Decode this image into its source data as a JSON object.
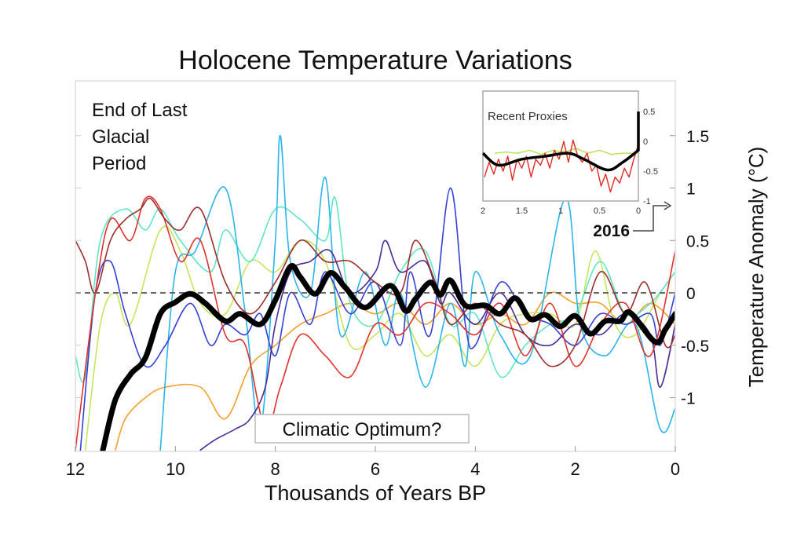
{
  "chart_data": {
    "type": "line",
    "title": "Holocene Temperature Variations",
    "xlabel": "Thousands of Years BP",
    "ylabel": "Temperature Anomaly (°C)",
    "xlim": [
      12,
      0
    ],
    "ylim": [
      -1.5,
      2.0
    ],
    "xticks": [
      "12",
      "10",
      "8",
      "6",
      "4",
      "2",
      "0"
    ],
    "xtick_values": [
      12,
      10,
      8,
      6,
      4,
      2,
      0
    ],
    "yticks": [
      "1.5",
      "1",
      "0.5",
      "0",
      "-0.5",
      "-1"
    ],
    "ytick_values": [
      1.5,
      1,
      0.5,
      0,
      -0.5,
      -1
    ],
    "grid": false,
    "reference_line": 0,
    "annotations": {
      "glacial": [
        "End of Last",
        "Glacial",
        "Period"
      ],
      "optimum": "Climatic Optimum?",
      "year": "2016"
    },
    "series": [
      {
        "name": "proxy-orange",
        "color": "#f5a02a",
        "x": [
          11.2,
          11.0,
          10.6,
          10.2,
          9.5,
          9.0,
          8.5,
          8.0,
          7.5,
          7.0,
          6.5,
          6.0,
          5.5,
          5.0,
          4.5,
          4.0,
          3.5,
          3.0,
          2.5,
          2.0,
          1.5,
          1.0,
          0.5,
          0.0
        ],
        "y": [
          -1.5,
          -1.2,
          -1.0,
          -0.9,
          -0.9,
          -1.2,
          -0.7,
          -0.5,
          -0.3,
          -0.2,
          -0.1,
          -0.2,
          -0.1,
          -0.3,
          -0.1,
          -0.3,
          -0.2,
          -0.3,
          0.0,
          -0.1,
          -0.1,
          -0.3,
          -0.1,
          -0.3
        ]
      },
      {
        "name": "proxy-yellowgreen",
        "color": "#c4e65a",
        "x": [
          11.8,
          11.5,
          11.2,
          10.9,
          10.3,
          9.9,
          9.5,
          9.0,
          8.5,
          8.0,
          7.5,
          7.0,
          6.5,
          6.0,
          5.5,
          5.0,
          4.5,
          4.0,
          3.5,
          3.0,
          2.5,
          2.0,
          1.6,
          1.2,
          0.8,
          0.3,
          0.0
        ],
        "y": [
          -1.5,
          -0.3,
          0.0,
          -0.3,
          0.6,
          0.4,
          -0.1,
          -0.2,
          0.3,
          0.2,
          0.5,
          0.3,
          -0.5,
          -0.4,
          -0.2,
          -0.6,
          -0.4,
          -0.7,
          -0.3,
          -0.2,
          -0.2,
          -0.3,
          0.4,
          -0.3,
          -0.4,
          0.0,
          0.2
        ]
      },
      {
        "name": "proxy-aqua",
        "color": "#5ee6c4",
        "x": [
          12,
          11.8,
          11.5,
          11.0,
          10.6,
          10.3,
          9.9,
          9.3,
          9.0,
          8.5,
          8.0,
          7.5,
          7.0,
          6.8,
          6.5,
          6.0,
          5.5,
          5.0,
          4.5,
          4.0,
          3.5,
          3.0,
          2.5,
          2.0,
          1.5,
          1.0,
          0.5,
          0.0
        ],
        "y": [
          -0.6,
          -0.8,
          0.5,
          0.8,
          0.6,
          0.8,
          0.5,
          0.2,
          0.6,
          0.3,
          0.8,
          0.7,
          0.5,
          0.9,
          -0.1,
          -0.3,
          0.2,
          0.4,
          -0.3,
          -0.2,
          -0.8,
          -0.5,
          -0.3,
          -0.2,
          0.3,
          -0.2,
          -0.1,
          0.2
        ]
      },
      {
        "name": "proxy-lightblue",
        "color": "#2ab4ec",
        "x": [
          10.3,
          10.0,
          9.6,
          9.0,
          8.6,
          8.3,
          8.0,
          7.9,
          7.7,
          7.3,
          7.0,
          6.7,
          6.2,
          5.8,
          5.5,
          5.0,
          4.5,
          4.2,
          4.0,
          3.5,
          2.9,
          2.2,
          1.9,
          1.4,
          0.8,
          0.3,
          0.0
        ],
        "y": [
          -1.5,
          0.2,
          0.4,
          1.0,
          -0.2,
          -1.3,
          0.5,
          1.5,
          0.3,
          0.0,
          1.1,
          -0.4,
          0.2,
          -0.5,
          0.0,
          -0.9,
          -0.1,
          -0.7,
          0.2,
          -0.4,
          -0.6,
          0.9,
          -0.3,
          -0.6,
          -0.3,
          -1.3,
          -1.1
        ]
      },
      {
        "name": "proxy-blue",
        "color": "#3340d6",
        "x": [
          11.9,
          11.6,
          11.3,
          11.0,
          10.6,
          10.2,
          9.7,
          9.3,
          9.0,
          8.6,
          8.3,
          8.0,
          7.7,
          7.3,
          7.0,
          6.5,
          6.0,
          5.5,
          5.3,
          4.9,
          4.5,
          4.2,
          4.0,
          3.5,
          3.0,
          2.5,
          2.0,
          1.5,
          1.0,
          0.5,
          0.3,
          0.0
        ],
        "y": [
          -1.5,
          0.0,
          0.3,
          -0.2,
          -0.7,
          -0.5,
          -0.1,
          -0.5,
          -0.3,
          -0.4,
          -0.2,
          -0.6,
          0.0,
          -0.3,
          0.2,
          -0.2,
          0.1,
          -0.5,
          0.2,
          -0.4,
          1.0,
          -0.3,
          -0.5,
          0.1,
          -0.2,
          -0.3,
          -0.5,
          -0.2,
          -0.3,
          -0.2,
          -0.5,
          0.0
        ]
      },
      {
        "name": "proxy-purple",
        "color": "#4a2a96",
        "x": [
          9.5,
          9.2,
          8.8,
          8.5,
          8.2,
          8.0,
          7.7,
          7.3,
          6.9,
          6.5,
          6.0,
          5.8,
          5.5,
          5.0,
          4.7,
          4.5,
          4.0,
          3.5,
          3.0,
          2.5,
          2.0,
          1.5,
          1.0,
          0.5,
          0.3,
          0.0
        ],
        "y": [
          -1.5,
          -1.4,
          -1.3,
          -1.2,
          -0.9,
          -0.3,
          0.2,
          0.3,
          0.4,
          0.0,
          0.2,
          0.5,
          0.2,
          0.3,
          -0.1,
          0.0,
          -0.3,
          0.0,
          -0.4,
          -0.5,
          -0.3,
          -0.4,
          -0.2,
          -0.4,
          -0.9,
          -0.3
        ]
      },
      {
        "name": "proxy-red",
        "color": "#e0322a",
        "x": [
          12,
          11.6,
          11.3,
          10.9,
          10.6,
          10.3,
          9.9,
          9.5,
          9.0,
          8.6,
          8.2,
          7.9,
          7.5,
          7.0,
          6.5,
          6.0,
          5.5,
          5.0,
          4.5,
          4.0,
          3.5,
          3.0,
          2.5,
          2.0,
          1.5,
          1.0,
          0.5,
          0.0
        ],
        "y": [
          -1.5,
          0.0,
          0.7,
          0.5,
          0.9,
          0.8,
          0.3,
          0.5,
          -0.4,
          -0.5,
          -1.3,
          -0.9,
          -0.4,
          -0.6,
          -0.8,
          -0.3,
          -0.4,
          -0.1,
          -0.2,
          -0.4,
          -0.1,
          -0.6,
          -0.1,
          -0.7,
          -0.3,
          -0.1,
          -0.6,
          0.4
        ]
      },
      {
        "name": "proxy-darkred",
        "color": "#9c2e2e",
        "x": [
          12,
          11.8,
          11.6,
          11.3,
          11.0,
          10.7,
          10.5,
          10.2,
          9.9,
          9.5,
          9.0,
          8.5,
          8.0,
          7.5,
          7.0,
          6.5,
          6.0,
          5.5,
          5.2,
          4.8,
          4.5,
          4.0,
          3.5,
          3.0,
          2.5,
          2.0,
          1.5,
          1.0,
          0.6,
          0.2,
          0.0
        ],
        "y": [
          0.5,
          0.3,
          0.0,
          0.5,
          0.7,
          0.8,
          0.9,
          0.7,
          0.6,
          0.8,
          0.1,
          -0.2,
          0.1,
          0.5,
          0.3,
          0.3,
          0.1,
          0.0,
          0.5,
          0.1,
          -0.3,
          -0.1,
          -0.3,
          -0.4,
          -0.7,
          -0.5,
          0.2,
          -0.2,
          0.1,
          -0.5,
          -0.4
        ]
      },
      {
        "name": "mean",
        "color": "#000000",
        "x": [
          11.45,
          11.2,
          10.9,
          10.6,
          10.3,
          10.0,
          9.7,
          9.4,
          9.0,
          8.7,
          8.3,
          8.0,
          7.7,
          7.5,
          7.2,
          6.9,
          6.6,
          6.2,
          5.7,
          5.4,
          5.2,
          4.9,
          4.7,
          4.5,
          4.2,
          3.8,
          3.5,
          3.2,
          2.9,
          2.6,
          2.3,
          2.0,
          1.7,
          1.4,
          1.1,
          0.9,
          0.4,
          0.2,
          0.0
        ],
        "y": [
          -1.5,
          -1.02,
          -0.78,
          -0.62,
          -0.2,
          -0.09,
          -0.01,
          -0.1,
          -0.27,
          -0.2,
          -0.3,
          -0.07,
          0.25,
          0.15,
          -0.01,
          0.19,
          0.05,
          -0.14,
          0.07,
          -0.17,
          -0.06,
          0.1,
          -0.02,
          0.12,
          -0.12,
          -0.12,
          -0.2,
          -0.05,
          -0.25,
          -0.21,
          -0.32,
          -0.22,
          -0.39,
          -0.27,
          -0.27,
          -0.19,
          -0.47,
          -0.35,
          -0.2
        ]
      }
    ],
    "inset": {
      "title": "Recent Proxies",
      "xlim": [
        2,
        0
      ],
      "ylim": [
        -1,
        0.85
      ],
      "xticks": [
        "2",
        "1.5",
        "1",
        "0.5",
        "0"
      ],
      "xtick_values": [
        2,
        1.5,
        1,
        0.5,
        0
      ],
      "yticks": [
        "0.5",
        "0",
        "-0.5",
        "-1"
      ],
      "ytick_values": [
        0.5,
        0,
        -0.5,
        -1
      ],
      "series": [
        {
          "name": "recent-green",
          "color": "#b8e04a",
          "x": [
            1.85,
            1.7,
            1.55,
            1.4,
            1.25,
            1.1,
            0.95,
            0.8,
            0.65,
            0.5,
            0.35,
            0.2,
            0.05,
            0.0
          ],
          "y": [
            -0.2,
            -0.18,
            -0.2,
            -0.15,
            -0.22,
            -0.15,
            -0.18,
            -0.12,
            -0.2,
            -0.15,
            -0.22,
            -0.2,
            -0.2,
            -0.1
          ]
        },
        {
          "name": "recent-red",
          "color": "#e02a22",
          "x": [
            1.98,
            1.92,
            1.86,
            1.8,
            1.74,
            1.68,
            1.62,
            1.56,
            1.5,
            1.44,
            1.38,
            1.32,
            1.26,
            1.2,
            1.14,
            1.08,
            1.02,
            0.96,
            0.9,
            0.84,
            0.78,
            0.72,
            0.66,
            0.6,
            0.54,
            0.48,
            0.42,
            0.36,
            0.3,
            0.24,
            0.18,
            0.12,
            0.06,
            0.0
          ],
          "y": [
            -0.6,
            -0.35,
            -0.55,
            -0.3,
            -0.5,
            -0.25,
            -0.65,
            -0.3,
            -0.45,
            -0.25,
            -0.6,
            -0.3,
            -0.4,
            -0.2,
            -0.45,
            -0.15,
            -0.3,
            0.0,
            -0.35,
            0.02,
            -0.25,
            -0.35,
            -0.2,
            -0.5,
            -0.4,
            -0.75,
            -0.55,
            -0.85,
            -0.6,
            -0.7,
            -0.45,
            -0.6,
            -0.3,
            -0.05
          ]
        },
        {
          "name": "recent-mean",
          "color": "#000000",
          "x": [
            2.0,
            1.8,
            1.5,
            1.2,
            0.9,
            0.7,
            0.4,
            0.2,
            0.0,
            0.0
          ],
          "y": [
            -0.2,
            -0.4,
            -0.3,
            -0.25,
            -0.2,
            -0.3,
            -0.48,
            -0.35,
            -0.15,
            0.5
          ]
        }
      ]
    }
  }
}
